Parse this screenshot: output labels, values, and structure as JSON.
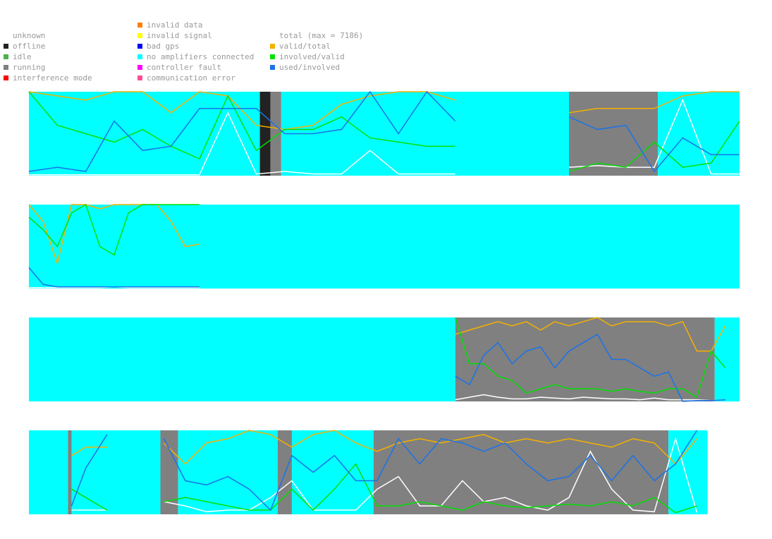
{
  "legend": {
    "status": [
      {
        "label": "unknown",
        "color": "#ffffff"
      },
      {
        "label": "offline",
        "color": "#222222"
      },
      {
        "label": "idle",
        "color": "#4caf50"
      },
      {
        "label": "running",
        "color": "#808080"
      },
      {
        "label": "interference mode",
        "color": "#ff0000"
      },
      {
        "label": "invalid data",
        "color": "#ff7f00"
      },
      {
        "label": "invalid signal",
        "color": "#ffff00"
      },
      {
        "label": "bad gps",
        "color": "#0000ff"
      },
      {
        "label": "no amplifiers connected",
        "color": "#00ffff"
      },
      {
        "label": "controller fault",
        "color": "#ff00ff"
      },
      {
        "label": "communication error",
        "color": "#ff4d94"
      }
    ],
    "lines": [
      {
        "label": "total (max = 7186)",
        "color": "#ffffff"
      },
      {
        "label": "valid/total",
        "color": "#f5b000"
      },
      {
        "label": "involved/valid",
        "color": "#00e000"
      },
      {
        "label": "used/involved",
        "color": "#1a73e8"
      }
    ]
  },
  "chart_data": [
    {
      "type": "line",
      "xlim": [
        0,
        100
      ],
      "ylim": [
        0,
        1
      ],
      "segments": [
        {
          "start": 0,
          "end": 32.5,
          "color": "#00ffff"
        },
        {
          "start": 32.5,
          "end": 34,
          "color": "#222222"
        },
        {
          "start": 34,
          "end": 35.5,
          "color": "#808080"
        },
        {
          "start": 35.5,
          "end": 76,
          "color": "#00ffff"
        },
        {
          "start": 76,
          "end": 88.5,
          "color": "#808080"
        },
        {
          "start": 88.5,
          "end": 100,
          "color": "#00ffff"
        }
      ],
      "x": [
        0,
        4,
        8,
        12,
        16,
        20,
        24,
        28,
        32,
        36,
        40,
        44,
        48,
        52,
        56,
        60,
        64,
        68,
        72,
        76,
        80,
        84,
        88,
        92,
        96,
        100
      ],
      "series": [
        {
          "color": "#ffffff",
          "values": [
            0.01,
            0.01,
            0.01,
            0.01,
            0.01,
            0.01,
            0.01,
            0.75,
            0.02,
            0.05,
            0.02,
            0.02,
            0.3,
            0.02,
            0.02,
            0.02,
            null,
            null,
            null,
            0.1,
            0.12,
            0.1,
            0.1,
            0.9,
            0.02,
            0.02
          ]
        },
        {
          "color": "#f5b000",
          "values": [
            1,
            0.95,
            0.9,
            1,
            1,
            0.75,
            1,
            0.95,
            0.6,
            0.55,
            0.6,
            0.85,
            0.95,
            1,
            1,
            0.9,
            null,
            null,
            null,
            0.75,
            0.8,
            0.8,
            0.8,
            0.95,
            1,
            1
          ]
        },
        {
          "color": "#00e000",
          "values": [
            1,
            0.6,
            0.5,
            0.4,
            0.55,
            0.35,
            0.2,
            0.95,
            0.3,
            0.55,
            0.55,
            0.7,
            0.45,
            0.4,
            0.35,
            0.35,
            null,
            null,
            null,
            0.05,
            0.15,
            0.1,
            0.4,
            0.1,
            0.15,
            0.65
          ]
        },
        {
          "color": "#1a73e8",
          "values": [
            0.05,
            0.1,
            0.05,
            0.65,
            0.3,
            0.35,
            0.8,
            0.8,
            0.8,
            0.5,
            0.5,
            0.55,
            1,
            0.5,
            1,
            0.65,
            null,
            null,
            null,
            0.7,
            0.55,
            0.6,
            0.05,
            0.45,
            0.25,
            0.25
          ]
        }
      ]
    },
    {
      "type": "line",
      "xlim": [
        0,
        100
      ],
      "ylim": [
        0,
        1
      ],
      "segments": [
        {
          "start": 0,
          "end": 100,
          "color": "#00ffff"
        }
      ],
      "x": [
        0,
        2,
        4,
        6,
        8,
        10,
        12,
        14,
        16,
        18,
        20,
        22,
        24
      ],
      "series": [
        {
          "color": "#ffffff",
          "values": [
            0.01,
            0.01,
            0.01,
            0.01,
            0.01,
            0.01,
            0.02,
            0.01,
            0.01,
            0.01,
            0.01,
            0.01,
            0.01
          ]
        },
        {
          "color": "#f5b000",
          "values": [
            1,
            0.8,
            0.3,
            1,
            1,
            0.95,
            1,
            1,
            1,
            1,
            0.8,
            0.5,
            0.53
          ]
        },
        {
          "color": "#00e000",
          "values": [
            0.85,
            0.7,
            0.5,
            0.9,
            1,
            0.5,
            0.4,
            0.9,
            1,
            1,
            1,
            1,
            1
          ]
        },
        {
          "color": "#1a73e8",
          "values": [
            0.25,
            0.05,
            0.02,
            0.02,
            0.02,
            0.02,
            0.02,
            0.02,
            0.02,
            0.02,
            0.02,
            0.02,
            0.02
          ]
        }
      ]
    },
    {
      "type": "line",
      "xlim": [
        0,
        100
      ],
      "ylim": [
        0,
        1
      ],
      "segments": [
        {
          "start": 0,
          "end": 60,
          "color": "#00ffff"
        },
        {
          "start": 60,
          "end": 96.5,
          "color": "#808080"
        },
        {
          "start": 96.5,
          "end": 100,
          "color": "#00ffff"
        }
      ],
      "x": [
        60,
        62,
        64,
        66,
        68,
        70,
        72,
        74,
        76,
        78,
        80,
        82,
        84,
        86,
        88,
        90,
        92,
        94,
        96,
        98
      ],
      "series": [
        {
          "color": "#ffffff",
          "values": [
            0.02,
            0.05,
            0.08,
            0.05,
            0.03,
            0.03,
            0.05,
            0.04,
            0.03,
            0.05,
            0.04,
            0.03,
            0.03,
            0.02,
            0.04,
            0.02,
            0.02,
            0.02,
            0.01,
            0.02
          ]
        },
        {
          "color": "#f5b000",
          "values": [
            0.8,
            0.85,
            0.9,
            0.95,
            0.9,
            0.95,
            0.85,
            0.95,
            0.9,
            0.95,
            1,
            0.9,
            0.95,
            0.95,
            0.95,
            0.9,
            0.95,
            0.6,
            0.6,
            0.9
          ]
        },
        {
          "color": "#00e000",
          "values": [
            1,
            0.45,
            0.45,
            0.3,
            0.25,
            0.1,
            0.15,
            0.2,
            0.15,
            0.15,
            0.15,
            0.12,
            0.15,
            0.12,
            0.1,
            0.15,
            0.15,
            0.05,
            0.6,
            0.4
          ]
        },
        {
          "color": "#1a73e8",
          "values": [
            0.3,
            0.2,
            0.55,
            0.7,
            0.45,
            0.6,
            0.65,
            0.4,
            0.6,
            0.7,
            0.8,
            0.5,
            0.5,
            0.4,
            0.3,
            0.35,
            0,
            0.01,
            0.01,
            0.02
          ]
        }
      ]
    },
    {
      "type": "line",
      "xlim": [
        0,
        100
      ],
      "ylim": [
        0,
        1
      ],
      "segments": [
        {
          "start": 0,
          "end": 5.5,
          "color": "#00ffff"
        },
        {
          "start": 5.5,
          "end": 6,
          "color": "#808080"
        },
        {
          "start": 6,
          "end": 18.5,
          "color": "#00ffff"
        },
        {
          "start": 18.5,
          "end": 21,
          "color": "#808080"
        },
        {
          "start": 21,
          "end": 35,
          "color": "#00ffff"
        },
        {
          "start": 35,
          "end": 37,
          "color": "#808080"
        },
        {
          "start": 37,
          "end": 48.5,
          "color": "#00ffff"
        },
        {
          "start": 48.5,
          "end": 90,
          "color": "#808080"
        },
        {
          "start": 90,
          "end": 95.5,
          "color": "#00ffff"
        }
      ],
      "x": [
        6,
        8,
        11,
        15,
        19,
        22,
        25,
        28,
        31,
        34,
        37,
        40,
        43,
        46,
        49,
        52,
        55,
        58,
        61,
        64,
        67,
        70,
        73,
        76,
        79,
        82,
        85,
        88,
        91,
        94
      ],
      "series": [
        {
          "color": "#ffffff",
          "values": [
            0.05,
            0.05,
            0.05,
            null,
            0.15,
            0.1,
            0.03,
            0.05,
            0.05,
            0.2,
            0.4,
            0.05,
            0.05,
            0.05,
            0.3,
            0.45,
            0.1,
            0.1,
            0.4,
            0.15,
            0.2,
            0.1,
            0.05,
            0.2,
            0.75,
            0.3,
            0.05,
            0.03,
            0.9,
            0.02
          ]
        },
        {
          "color": "#f5b000",
          "values": [
            0.7,
            0.8,
            0.8,
            null,
            0.85,
            0.6,
            0.85,
            0.9,
            1,
            0.95,
            0.8,
            0.95,
            1,
            0.85,
            0.75,
            0.85,
            0.9,
            0.85,
            0.9,
            0.95,
            0.85,
            0.9,
            0.85,
            0.9,
            0.85,
            0.8,
            0.9,
            0.85,
            0.6,
            0.9
          ]
        },
        {
          "color": "#00e000",
          "values": [
            0.3,
            0.2,
            0.05,
            null,
            0.15,
            0.2,
            0.15,
            0.1,
            0.05,
            0.05,
            0.3,
            0.05,
            0.3,
            0.6,
            0.1,
            0.1,
            0.15,
            0.1,
            0.05,
            0.15,
            0.1,
            0.08,
            0.1,
            0.12,
            0.1,
            0.15,
            0.1,
            0.2,
            0.02,
            0.1
          ]
        },
        {
          "color": "#1a73e8",
          "values": [
            0.1,
            0.55,
            0.95,
            null,
            0.9,
            0.4,
            0.35,
            0.45,
            0.3,
            0.05,
            0.7,
            0.5,
            0.7,
            0.4,
            0.4,
            0.9,
            0.6,
            0.9,
            0.85,
            0.75,
            0.85,
            0.6,
            0.4,
            0.45,
            0.7,
            0.4,
            0.7,
            0.4,
            0.6,
            1
          ]
        }
      ]
    }
  ]
}
